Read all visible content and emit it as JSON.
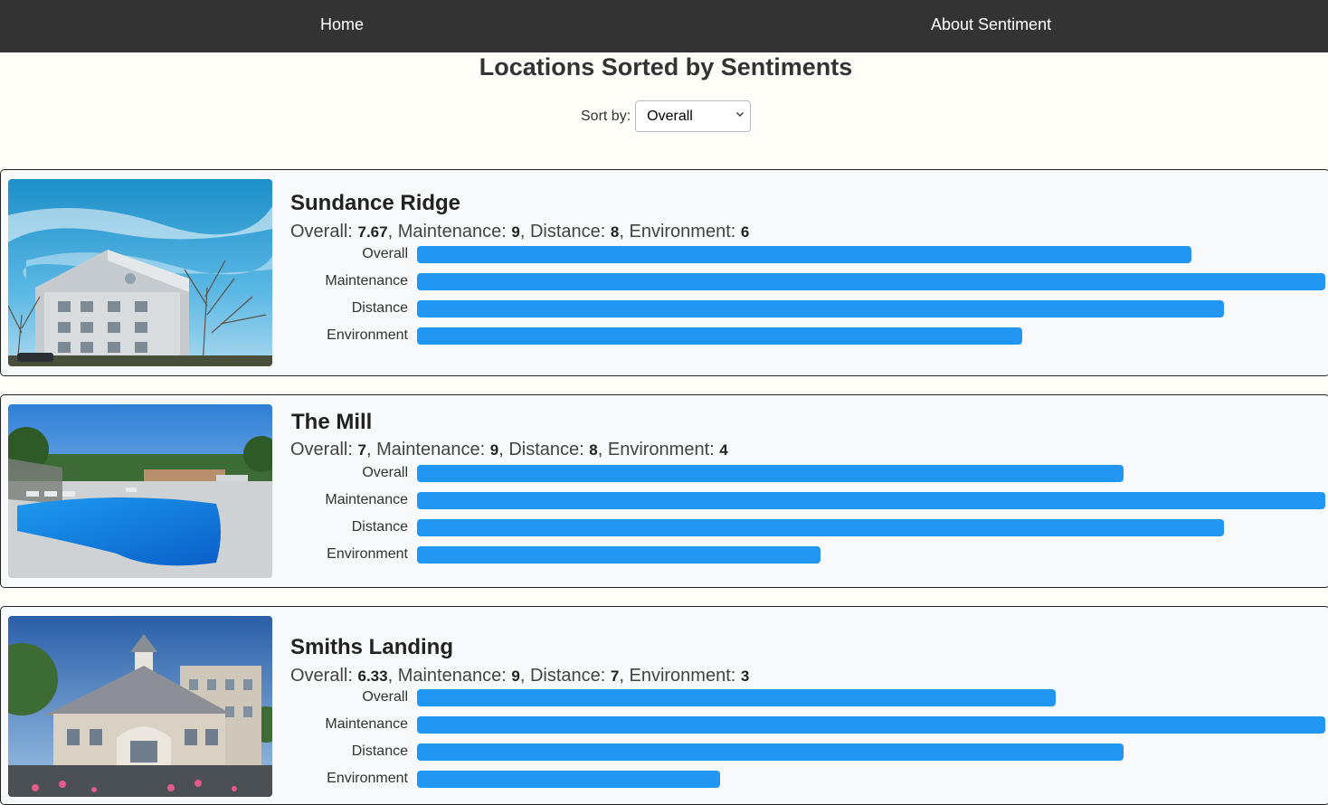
{
  "nav": {
    "home": "Home",
    "about": "About Sentiment"
  },
  "page": {
    "title": "Locations Sorted by Sentiments",
    "sort_label": "Sort by:",
    "sort_value": "Overall"
  },
  "metric_labels": {
    "overall": "Overall",
    "maintenance": "Maintenance",
    "distance": "Distance",
    "environment": "Environment"
  },
  "bar_color": "#2196f3",
  "score_max": 9,
  "locations": [
    {
      "name": "Sundance Ridge",
      "photo": "apartment-building-photo",
      "overall": "7.67",
      "maintenance": "9",
      "distance": "8",
      "environment": "6"
    },
    {
      "name": "The Mill",
      "photo": "pool-photo",
      "overall": "7",
      "maintenance": "9",
      "distance": "8",
      "environment": "4"
    },
    {
      "name": "Smiths Landing",
      "photo": "clubhouse-photo",
      "overall": "6.33",
      "maintenance": "9",
      "distance": "7",
      "environment": "3"
    }
  ]
}
